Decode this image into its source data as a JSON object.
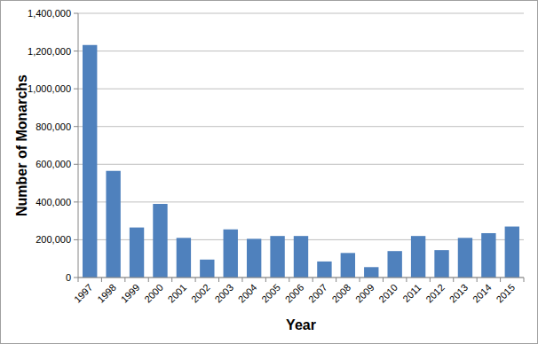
{
  "chart_data": {
    "type": "bar",
    "x_label": "Year",
    "y_label": "Number of Monarchs",
    "categories": [
      "1997",
      "1998",
      "1999",
      "2000",
      "2001",
      "2002",
      "2003",
      "2004",
      "2005",
      "2006",
      "2007",
      "2008",
      "2009",
      "2010",
      "2011",
      "2012",
      "2013",
      "2014",
      "2015"
    ],
    "values": [
      1232000,
      565000,
      265000,
      390000,
      210000,
      95000,
      255000,
      205000,
      220000,
      220000,
      85000,
      130000,
      55000,
      140000,
      220000,
      145000,
      210000,
      235000,
      270000
    ],
    "color": "#4f81bd",
    "ylim": [
      0,
      1400000
    ],
    "yticks": [
      0,
      {
        "value": 200000,
        "label": "200,000"
      },
      {
        "value": 400000,
        "label": "400,000"
      },
      {
        "value": 600000,
        "label": "600,000"
      },
      {
        "value": 800000,
        "label": "800,000"
      },
      {
        "value": 1000000,
        "label": "1,000,000"
      },
      {
        "value": 1200000,
        "label": "1,200,000"
      },
      {
        "value": 1400000,
        "label": "1,400,000"
      }
    ],
    "grid": true
  }
}
